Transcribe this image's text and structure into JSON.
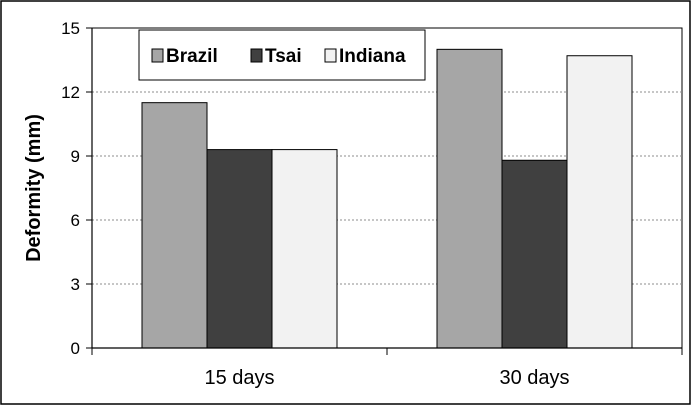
{
  "chart_data": {
    "type": "bar",
    "categories": [
      "15 days",
      "30 days"
    ],
    "series": [
      {
        "name": "Brazil",
        "values": [
          11.5,
          14.0
        ],
        "color": "#a6a6a6"
      },
      {
        "name": "Tsai",
        "values": [
          9.3,
          8.8
        ],
        "color": "#404040"
      },
      {
        "name": "Indiana",
        "values": [
          9.3,
          13.7
        ],
        "color": "#f2f2f2"
      }
    ],
    "title": "",
    "xlabel": "",
    "ylabel": "Deformity (mm)",
    "ylim": [
      0,
      15
    ],
    "yticks": [
      "0",
      "3",
      "6",
      "9",
      "12",
      "15"
    ],
    "grid": true,
    "legend_position": "top"
  }
}
